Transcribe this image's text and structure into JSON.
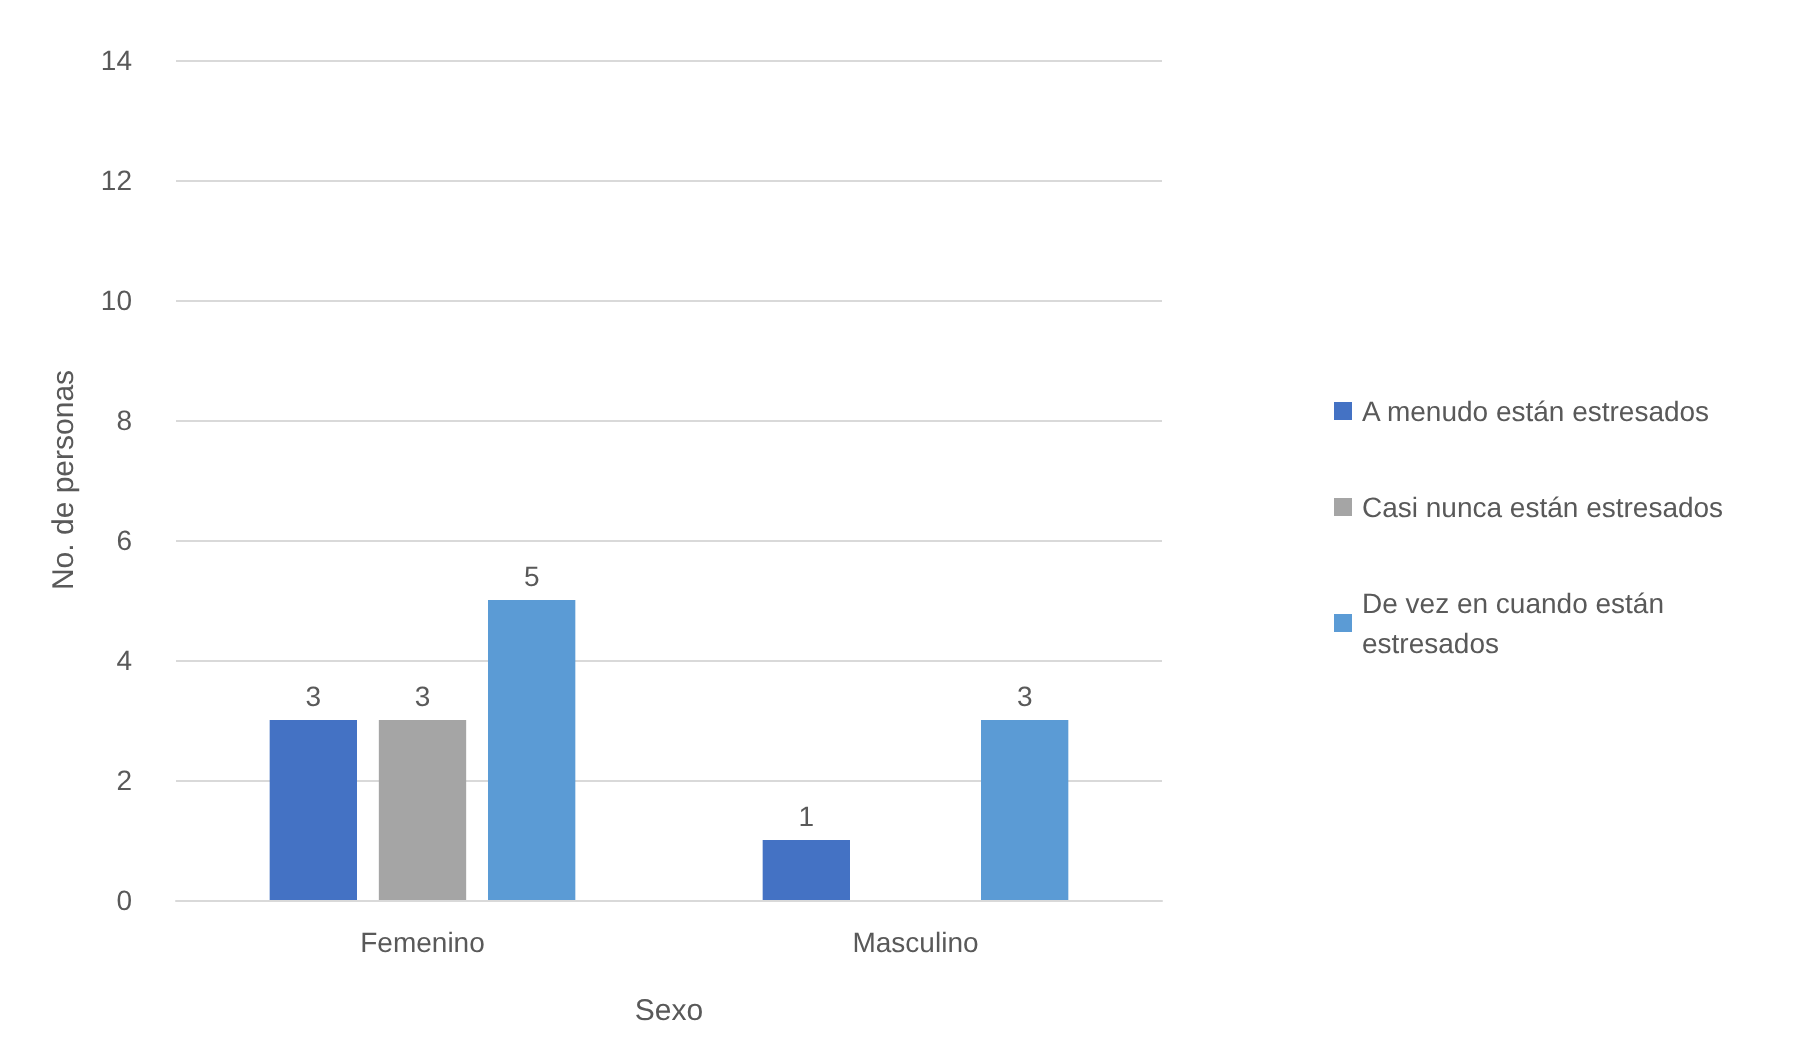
{
  "chart_data": {
    "type": "bar",
    "xlabel": "Sexo",
    "ylabel": "No. de personas",
    "categories": [
      "Femenino",
      "Masculino"
    ],
    "series": [
      {
        "name": "A menudo están estresados",
        "color": "#4472c4",
        "values": [
          3,
          1
        ]
      },
      {
        "name": "Casi nunca están estresados",
        "color": "#a5a5a5",
        "values": [
          3,
          null
        ]
      },
      {
        "name": "De vez en cuando están estresados",
        "color": "#5b9bd5",
        "values": [
          5,
          3
        ]
      }
    ],
    "ylim": [
      0,
      14
    ],
    "yticks": [
      0,
      2,
      4,
      6,
      8,
      10,
      12,
      14
    ],
    "grid": "y",
    "legend": "right",
    "data_labels": true
  }
}
